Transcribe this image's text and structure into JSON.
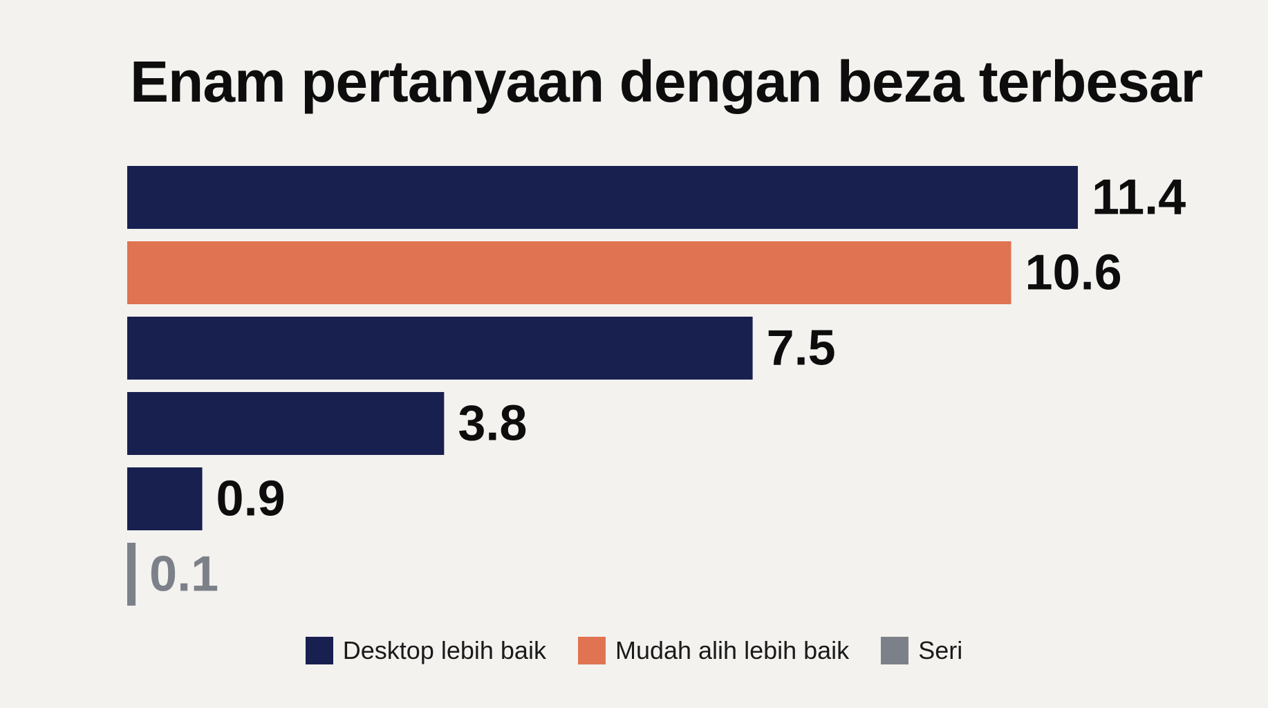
{
  "chart_data": {
    "type": "bar",
    "orientation": "horizontal",
    "title": "Enam pertanyaan dengan beza terbesar",
    "values": [
      11.4,
      10.6,
      7.5,
      3.8,
      0.9,
      0.1
    ],
    "labels": [
      "11.4",
      "10.6",
      "7.5",
      "3.8",
      "0.9",
      "0.1"
    ],
    "bar_groups": [
      "desktop",
      "mobile",
      "desktop",
      "desktop",
      "desktop",
      "tie"
    ],
    "xlim": [
      0,
      11.4
    ],
    "grid": false,
    "legend_position": "bottom-center",
    "legend": [
      {
        "key": "desktop",
        "label": "Desktop lebih baik",
        "color": "#182050"
      },
      {
        "key": "mobile",
        "label": "Mudah alih lebih baik",
        "color": "#e07352"
      },
      {
        "key": "tie",
        "label": "Seri",
        "color": "#7c8189"
      }
    ],
    "label_colors": {
      "desktop": "#0d0d0d",
      "mobile": "#0d0d0d",
      "tie": "#7c8189"
    }
  }
}
